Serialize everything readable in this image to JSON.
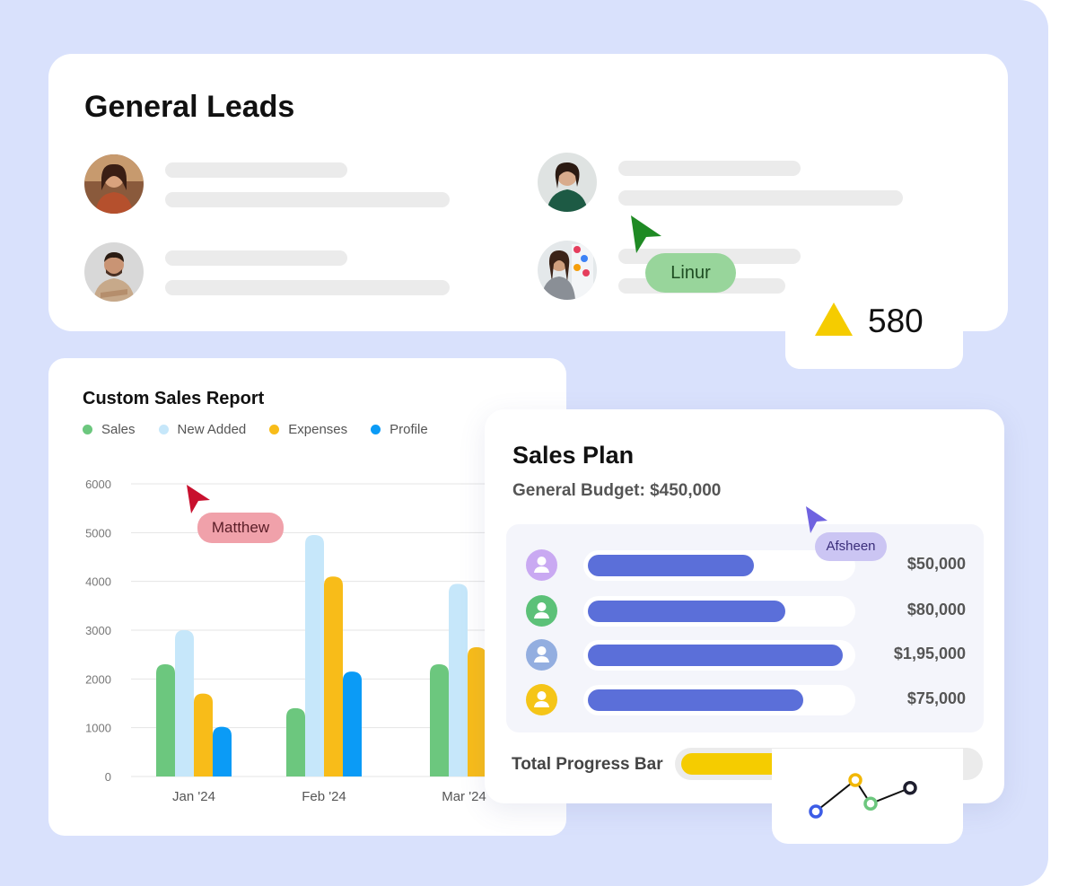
{
  "leads": {
    "title": "General Leads",
    "avatars": [
      "woman-avatar",
      "woman-avatar",
      "man-avatar",
      "woman-avatar"
    ]
  },
  "stat": {
    "value": "580",
    "color": "#f5cc00"
  },
  "cursors": {
    "linur": {
      "label": "Linur",
      "color": "#1f8a24"
    },
    "matthew": {
      "label": "Matthew",
      "color": "#c8102e"
    },
    "afsheen": {
      "label": "Afsheen",
      "color": "#6f62e0"
    }
  },
  "report": {
    "title": "Custom Sales Report",
    "legend": [
      {
        "label": "Sales",
        "color": "#6cc77e"
      },
      {
        "label": "New Added",
        "color": "#c6e7fa"
      },
      {
        "label": "Expenses",
        "color": "#f8bc19"
      },
      {
        "label": "Profile",
        "color": "#0b9bf6"
      }
    ]
  },
  "chart_data": {
    "type": "bar",
    "title": "Custom Sales Report",
    "categories": [
      "Jan '24",
      "Feb '24",
      "Mar '24"
    ],
    "series": [
      {
        "name": "Sales",
        "values": [
          2300,
          1400,
          2300
        ]
      },
      {
        "name": "New Added",
        "values": [
          3000,
          4950,
          3950
        ]
      },
      {
        "name": "Expenses",
        "values": [
          1700,
          4100,
          2650
        ]
      },
      {
        "name": "Profile",
        "values": [
          1020,
          2150,
          null
        ]
      }
    ],
    "yticks": [
      "6000",
      "5000",
      "4000",
      "3000",
      "2000",
      "1000",
      "0"
    ],
    "ylim": [
      0,
      6000
    ],
    "grid": true,
    "legend_position": "top-left"
  },
  "plan": {
    "title": "Sales Plan",
    "budget": "General Budget: $450,000",
    "rows": [
      {
        "amount": "$50,000",
        "progress": 0.63,
        "icon_color": "#c9a9f2"
      },
      {
        "amount": "$80,000",
        "progress": 0.75,
        "icon_color": "#5cc178"
      },
      {
        "amount": "$1,95,000",
        "progress": 0.97,
        "icon_color": "#93aee0"
      },
      {
        "amount": "$75,000",
        "progress": 0.82,
        "icon_color": "#f5c518"
      }
    ],
    "total_label": "Total Progress Bar",
    "total_progress": 0.6
  },
  "mini_chart": {
    "points": [
      1,
      3,
      1.5,
      2.5
    ],
    "colors": [
      "#3c5ce6",
      "#f2b705",
      "#6cc77e",
      "#1e1e2e"
    ]
  }
}
